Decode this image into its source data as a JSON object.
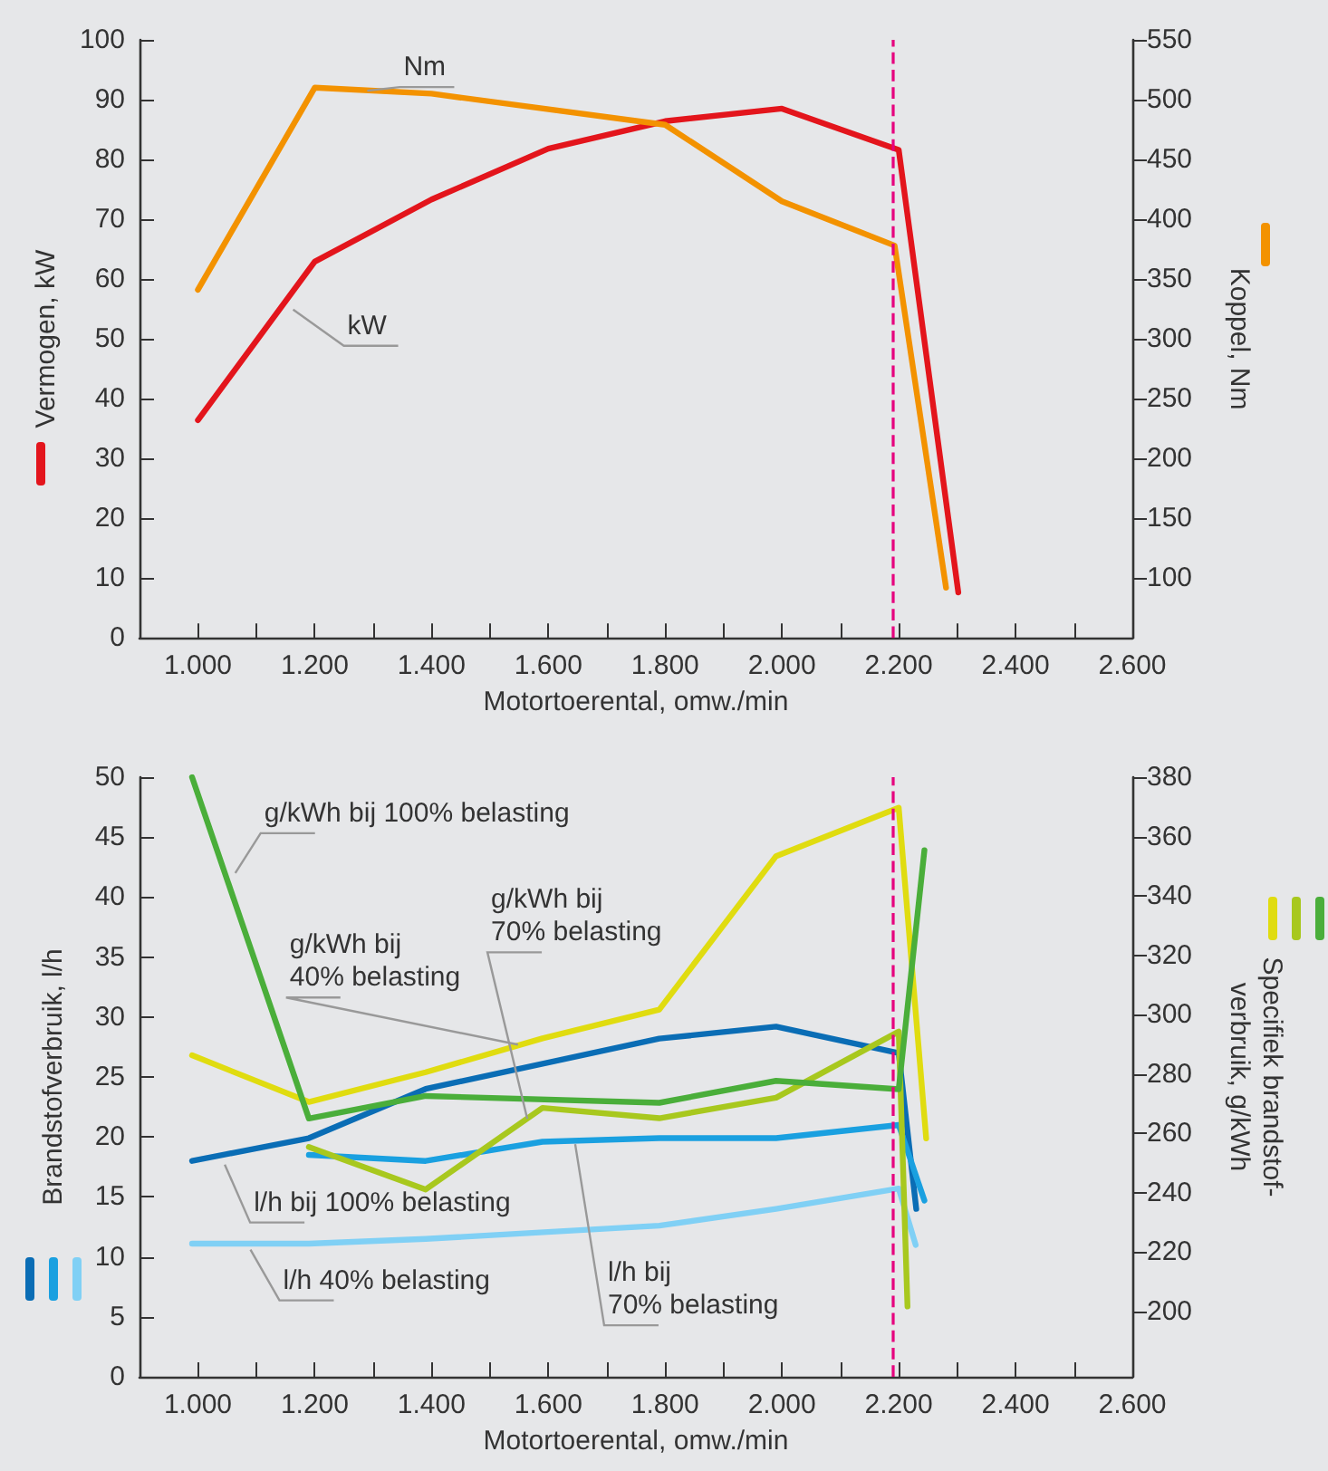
{
  "chart_data": [
    {
      "type": "line",
      "xlabel": "Motortoerental, omw./min",
      "ylabel": "Vermogen, kW",
      "y2label": "Koppel, Nm",
      "xlim": [
        900,
        2600
      ],
      "xticks": [
        {
          "value": 1000,
          "label": "1.000"
        },
        {
          "value": 1100,
          "label": null
        },
        {
          "value": 1200,
          "label": "1.200"
        },
        {
          "value": 1300,
          "label": null
        },
        {
          "value": 1400,
          "label": "1.400"
        },
        {
          "value": 1500,
          "label": null
        },
        {
          "value": 1600,
          "label": "1.600"
        },
        {
          "value": 1700,
          "label": null
        },
        {
          "value": 1800,
          "label": "1.800"
        },
        {
          "value": 1900,
          "label": null
        },
        {
          "value": 2000,
          "label": "2.000"
        },
        {
          "value": 2100,
          "label": null
        },
        {
          "value": 2200,
          "label": "2.200"
        },
        {
          "value": 2300,
          "label": null
        },
        {
          "value": 2400,
          "label": "2.400"
        },
        {
          "value": 2500,
          "label": null
        },
        {
          "value": 2600,
          "label": "2.600"
        }
      ],
      "ylim": [
        0,
        100
      ],
      "yticks": [
        0,
        10,
        20,
        30,
        40,
        50,
        60,
        70,
        80,
        90,
        100
      ],
      "y2lim": [
        50,
        550
      ],
      "y2ticks": [
        100,
        150,
        200,
        250,
        300,
        350,
        400,
        450,
        500,
        550
      ],
      "series": [
        {
          "color": "#e3151c",
          "x": [
            1000,
            1200,
            1400,
            1600,
            1800,
            2000,
            2200,
            2302
          ],
          "values": [
            36.4,
            62.9,
            73.3,
            81.8,
            86.4,
            88.5,
            81.6,
            7.6
          ]
        },
        {
          "color": "#f39200",
          "axis": "y2",
          "x": [
            1000,
            1200,
            1400,
            1800,
            2000,
            2193,
            2281
          ],
          "values": [
            341,
            510,
            505,
            479,
            415,
            378,
            92
          ]
        }
      ],
      "annotations": [
        {
          "text": "Nm",
          "x": 1290,
          "y": 91.5
        },
        {
          "text": "kW",
          "x": 1163,
          "y": 54.9
        }
      ],
      "ref_lines": [
        {
          "axis": "x",
          "value": 2190,
          "color": "#e6007e",
          "line_style": "dashed"
        }
      ],
      "grid": false,
      "marker": "none",
      "line_style": "solid"
    },
    {
      "type": "line",
      "xlabel": "Motortoerental, omw./min",
      "ylabel": "Brandstofverbruik, l/h",
      "y2label": "Specifiek brandstof-\nverbruik, g/kWh",
      "xlim": [
        900,
        2600
      ],
      "xticks": [
        {
          "value": 1000,
          "label": "1.000"
        },
        {
          "value": 1100,
          "label": null
        },
        {
          "value": 1200,
          "label": "1.200"
        },
        {
          "value": 1300,
          "label": null
        },
        {
          "value": 1400,
          "label": "1.400"
        },
        {
          "value": 1500,
          "label": null
        },
        {
          "value": 1600,
          "label": "1.600"
        },
        {
          "value": 1700,
          "label": null
        },
        {
          "value": 1800,
          "label": "1.800"
        },
        {
          "value": 1900,
          "label": null
        },
        {
          "value": 2000,
          "label": "2.000"
        },
        {
          "value": 2100,
          "label": null
        },
        {
          "value": 2200,
          "label": "2.200"
        },
        {
          "value": 2300,
          "label": null
        },
        {
          "value": 2400,
          "label": "2.400"
        },
        {
          "value": 2500,
          "label": null
        },
        {
          "value": 2600,
          "label": "2.600"
        }
      ],
      "ylim": [
        0,
        50
      ],
      "yticks": [
        0,
        5,
        10,
        15,
        20,
        25,
        30,
        35,
        40,
        45,
        50
      ],
      "y2lim": [
        178,
        380
      ],
      "y2ticks": [
        200,
        220,
        240,
        260,
        280,
        300,
        320,
        340,
        360,
        380
      ],
      "series": [
        {
          "color": "#0a6db5",
          "x": [
            990,
            1190,
            1390,
            1790,
            1990,
            2200,
            2230
          ],
          "values": [
            18.0,
            19.9,
            24.0,
            28.2,
            29.2,
            27.0,
            14.0
          ]
        },
        {
          "color": "#1aa0e0",
          "x": [
            1190,
            1390,
            1590,
            1790,
            1990,
            2200,
            2244
          ],
          "values": [
            18.5,
            18.0,
            19.6,
            19.9,
            19.9,
            21.0,
            14.7
          ]
        },
        {
          "color": "#80d0f5",
          "x": [
            990,
            1190,
            1390,
            1790,
            1990,
            2200,
            2229
          ],
          "values": [
            11.1,
            11.1,
            11.5,
            12.6,
            14.0,
            15.7,
            11.0
          ]
        },
        {
          "color": "#e0dc10",
          "axis": "y2",
          "x": [
            990,
            1190,
            1390,
            1590,
            1790,
            1990,
            2200,
            2247
          ],
          "values": [
            286.3,
            270.6,
            280.6,
            292,
            301.7,
            353.4,
            369.7,
            258.3
          ]
        },
        {
          "color": "#a8c81e",
          "axis": "y2",
          "x": [
            1190,
            1390,
            1590,
            1790,
            1990,
            2200,
            2215
          ],
          "values": [
            255.4,
            241.1,
            268.6,
            265.1,
            272,
            294.3,
            201.7
          ]
        },
        {
          "color": "#4aae3a",
          "axis": "y2",
          "x": [
            990,
            1190,
            1390,
            1790,
            1990,
            2200,
            2244
          ],
          "values": [
            380,
            265,
            272.6,
            270.3,
            277.7,
            274.9,
            355.4
          ]
        }
      ],
      "annotations": [
        {
          "text": "g/kWh bij 100% belasting",
          "x": 1064,
          "y": 42.0
        },
        {
          "text": "g/kWh bij\n40% belasting",
          "x": 1548,
          "y": 27.7
        },
        {
          "text": "g/kWh bij\n70% belasting",
          "x": 1564,
          "y": 21.5
        },
        {
          "text": "l/h bij 100% belasting",
          "x": 1046,
          "y": 17.7
        },
        {
          "text": "l/h 40% belasting",
          "x": 1090,
          "y": 10.6
        },
        {
          "text": "l/h bij\n70% belasting",
          "x": 1646,
          "y": 19.4
        }
      ],
      "ref_lines": [
        {
          "axis": "x",
          "value": 2190,
          "color": "#e6007e",
          "line_style": "dashed"
        }
      ],
      "grid": false,
      "marker": "none",
      "line_style": "solid"
    }
  ]
}
